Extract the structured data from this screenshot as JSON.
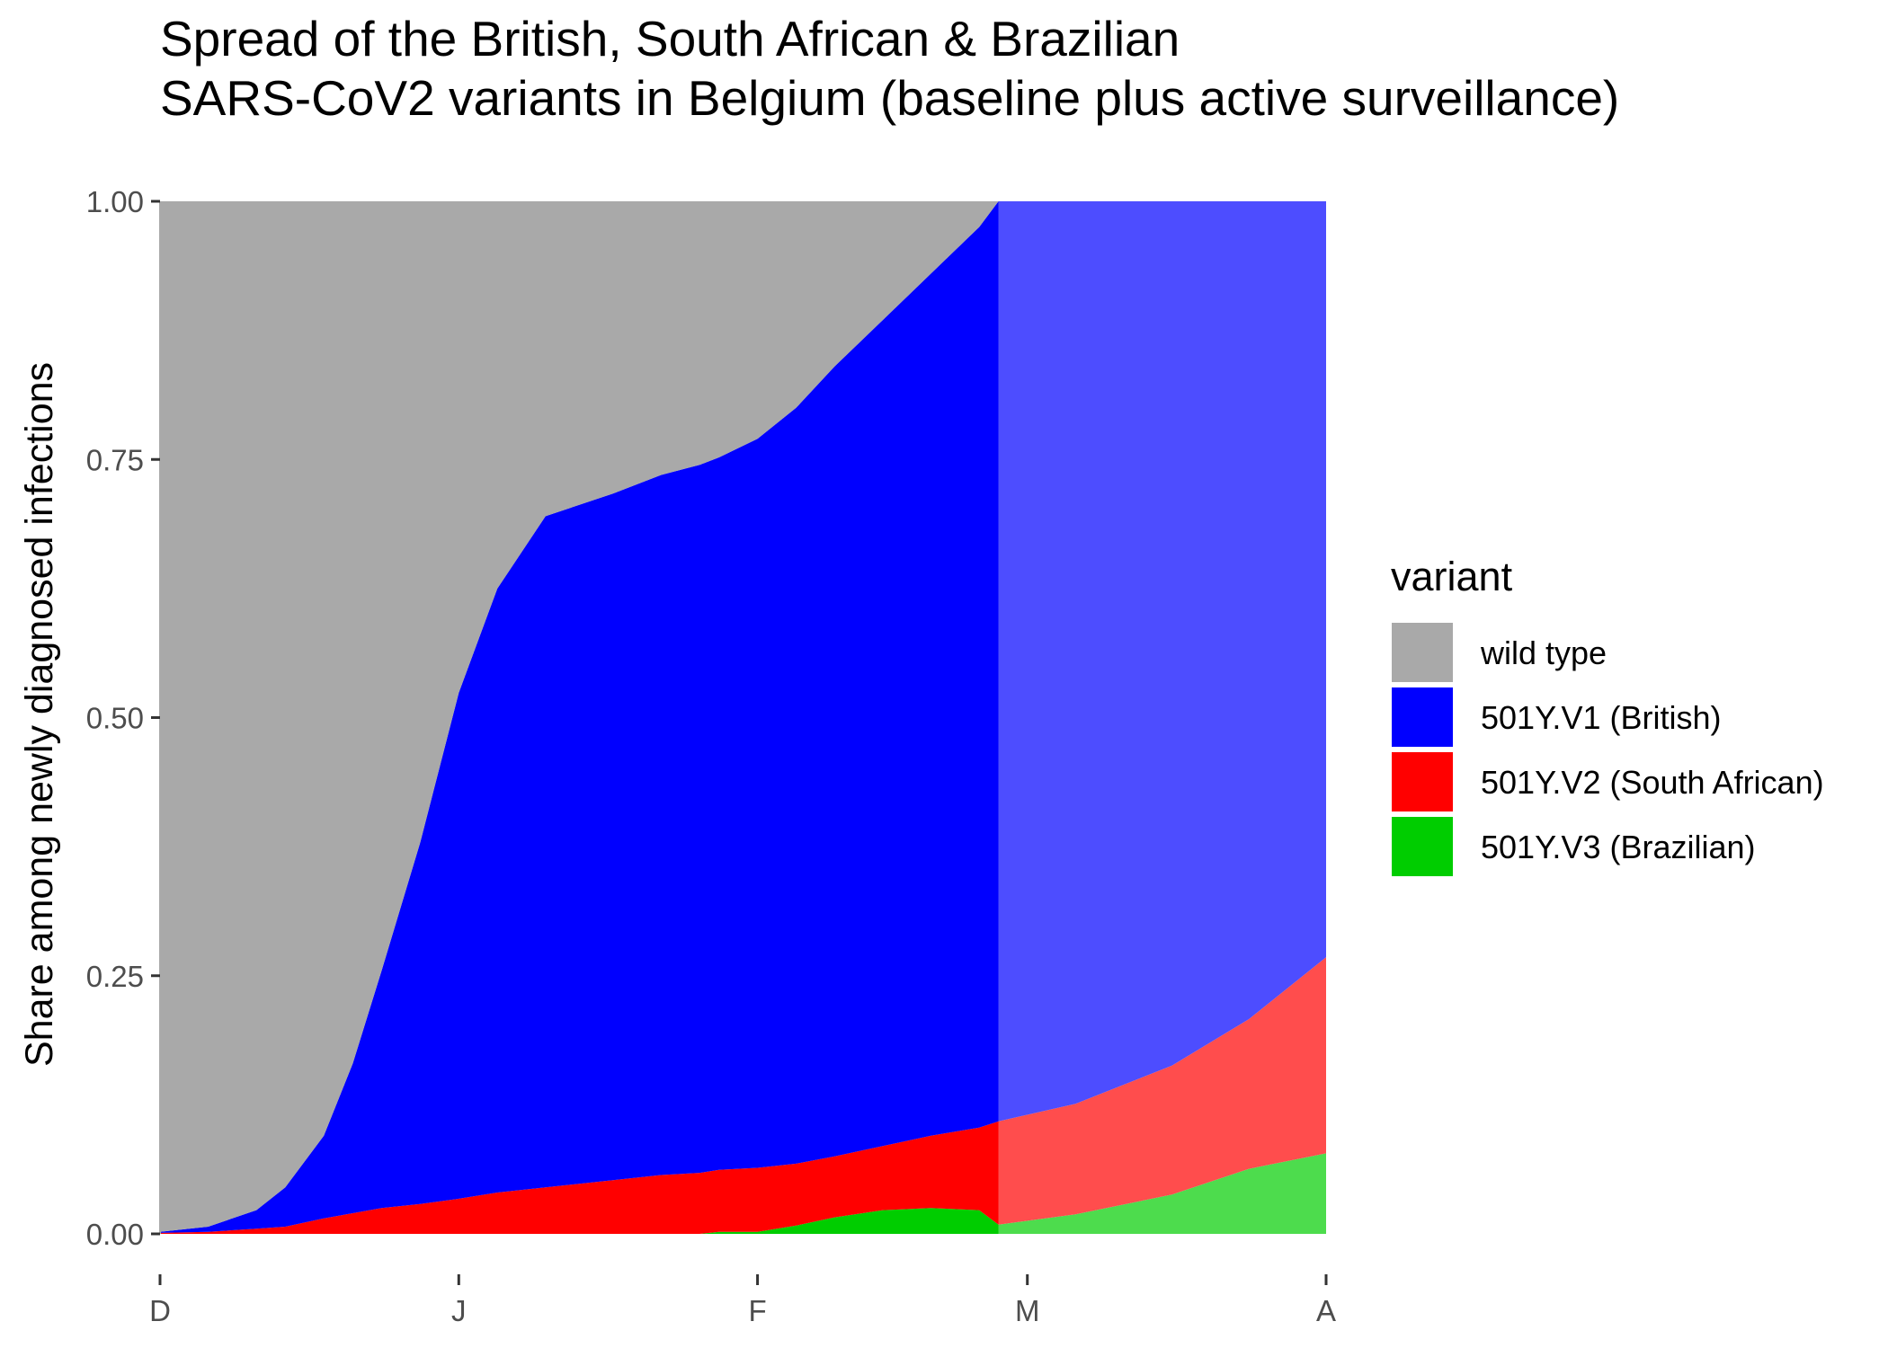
{
  "chart_data": {
    "type": "area",
    "title": [
      "Spread of the British, South African & Brazilian",
      "SARS-CoV2 variants in Belgium (baseline plus active surveillance)"
    ],
    "xlabel": "",
    "ylabel": "Share among newly diagnosed infections",
    "ylim": [
      0,
      1
    ],
    "yticks": [
      0,
      0.25,
      0.5,
      0.75,
      1
    ],
    "ytick_labels": [
      "0.00",
      "0.25",
      "0.50",
      "0.75",
      "1.00"
    ],
    "xticks": [
      0,
      31,
      62,
      90,
      121
    ],
    "xtick_labels": [
      "D",
      "J",
      "F",
      "M",
      "A"
    ],
    "xlim": [
      0,
      121
    ],
    "observed_until": 87,
    "stacked": true,
    "legend": {
      "title": "variant",
      "placement": "right"
    },
    "x": [
      0,
      5,
      10,
      13,
      17,
      20,
      23,
      27,
      31,
      35,
      40,
      47,
      52,
      56,
      58,
      62,
      66,
      70,
      75,
      80,
      85,
      87,
      95,
      105,
      113,
      121
    ],
    "series": [
      {
        "name": "wild type",
        "color": "#A9A9A9",
        "faded_color": "#C3C3C3",
        "values": [
          0.998,
          0.993,
          0.977,
          0.955,
          0.905,
          0.835,
          0.745,
          0.621,
          0.476,
          0.375,
          0.305,
          0.283,
          0.265,
          0.255,
          0.248,
          0.23,
          0.2,
          0.16,
          0.115,
          0.07,
          0.025,
          0.0,
          0.0,
          0.0,
          0.0,
          0.0
        ]
      },
      {
        "name": "501Y.V1 (British)",
        "color": "#0000FF",
        "faded_color": "#4D4DFF",
        "values": [
          0.001,
          0.005,
          0.018,
          0.038,
          0.08,
          0.145,
          0.23,
          0.35,
          0.49,
          0.585,
          0.65,
          0.665,
          0.678,
          0.685,
          0.69,
          0.706,
          0.732,
          0.765,
          0.8,
          0.835,
          0.872,
          0.891,
          0.874,
          0.837,
          0.792,
          0.732
        ]
      },
      {
        "name": "501Y.V2 (South African)",
        "color": "#FF0000",
        "faded_color": "#FF4D4D",
        "values": [
          0.001,
          0.002,
          0.005,
          0.007,
          0.015,
          0.02,
          0.025,
          0.029,
          0.034,
          0.04,
          0.045,
          0.052,
          0.057,
          0.059,
          0.06,
          0.062,
          0.06,
          0.059,
          0.062,
          0.07,
          0.08,
          0.1,
          0.107,
          0.125,
          0.145,
          0.19
        ]
      },
      {
        "name": "501Y.V3 (Brazilian)",
        "color": "#00CD00",
        "faded_color": "#4DDC4D",
        "values": [
          0,
          0,
          0,
          0,
          0,
          0,
          0,
          0,
          0,
          0,
          0,
          0,
          0,
          0,
          0.002,
          0.002,
          0.008,
          0.016,
          0.023,
          0.025,
          0.023,
          0.009,
          0.019,
          0.038,
          0.063,
          0.078
        ]
      }
    ]
  }
}
